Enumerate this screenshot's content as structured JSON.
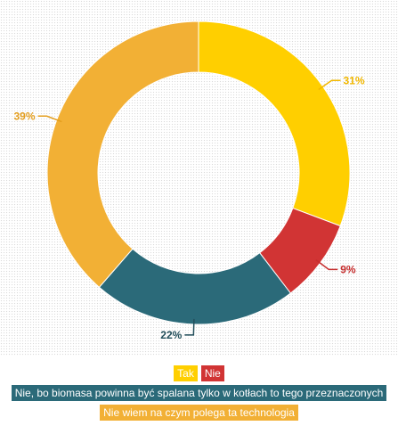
{
  "chart_data": {
    "type": "pie",
    "donut": true,
    "title": "",
    "slices": [
      {
        "name": "Tak",
        "value": 31,
        "label": "31%",
        "color": "#ffcf00",
        "label_color": "#f2b800"
      },
      {
        "name": "Nie",
        "value": 9,
        "label": "9%",
        "color": "#d13434",
        "label_color": "#c62e2e"
      },
      {
        "name": "Nie, bo biomasa powinna być spalana tylko w kotłach to tego przeznaczonych",
        "value": 22,
        "label": "22%",
        "color": "#2b6a79",
        "label_color": "#234f5b"
      },
      {
        "name": "Nie wiem na czym polega ta technologia",
        "value": 39,
        "label": "39%",
        "color": "#f2b035",
        "label_color": "#e39e1e"
      }
    ],
    "legend_placement": "bottom"
  }
}
